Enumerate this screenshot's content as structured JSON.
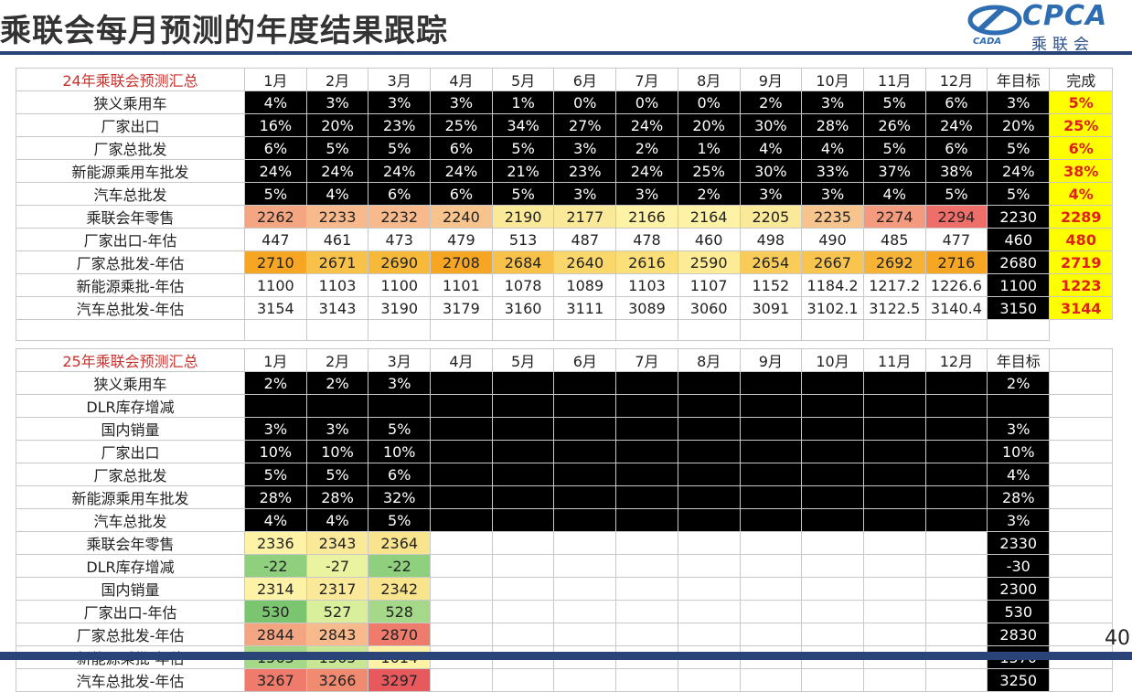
{
  "title": "乘联会每月预测的年度结果跟踪",
  "logo": {
    "en": "CPCA",
    "cn": "乘联会",
    "small": "CADA"
  },
  "page_number": "40",
  "months": [
    "1月",
    "2月",
    "3月",
    "4月",
    "5月",
    "6月",
    "7月",
    "8月",
    "9月",
    "10月",
    "11月",
    "12月"
  ],
  "year_target_label": "年目标",
  "done_label": "完成",
  "table2024": {
    "title": "24年乘联会预测汇总",
    "rows": [
      {
        "label": "狭义乘用车",
        "values": [
          "4%",
          "3%",
          "3%",
          "3%",
          "1%",
          "0%",
          "0%",
          "0%",
          "2%",
          "3%",
          "5%",
          "6%"
        ],
        "target": "3%",
        "done": "5%"
      },
      {
        "label": "厂家出口",
        "values": [
          "16%",
          "20%",
          "23%",
          "25%",
          "34%",
          "27%",
          "24%",
          "20%",
          "30%",
          "28%",
          "26%",
          "24%"
        ],
        "target": "20%",
        "done": "25%"
      },
      {
        "label": "厂家总批发",
        "values": [
          "6%",
          "5%",
          "5%",
          "6%",
          "5%",
          "3%",
          "2%",
          "1%",
          "4%",
          "4%",
          "5%",
          "6%"
        ],
        "target": "5%",
        "done": "6%"
      },
      {
        "label": "新能源乘用车批发",
        "values": [
          "24%",
          "24%",
          "24%",
          "24%",
          "21%",
          "23%",
          "24%",
          "25%",
          "30%",
          "33%",
          "37%",
          "38%"
        ],
        "target": "24%",
        "done": "38%"
      },
      {
        "label": "汽车总批发",
        "values": [
          "5%",
          "4%",
          "6%",
          "6%",
          "5%",
          "3%",
          "3%",
          "2%",
          "3%",
          "3%",
          "4%",
          "5%"
        ],
        "target": "5%",
        "done": "4%"
      },
      {
        "label": "乘联会年零售",
        "values": [
          "2262",
          "2233",
          "2232",
          "2240",
          "2190",
          "2177",
          "2166",
          "2164",
          "2205",
          "2235",
          "2274",
          "2294"
        ],
        "target": "2230",
        "done": "2289"
      },
      {
        "label": "厂家出口-年估",
        "values": [
          "447",
          "461",
          "473",
          "479",
          "513",
          "487",
          "478",
          "460",
          "498",
          "490",
          "485",
          "477"
        ],
        "target": "460",
        "done": "480"
      },
      {
        "label": "厂家总批发-年估",
        "values": [
          "2710",
          "2671",
          "2690",
          "2708",
          "2684",
          "2640",
          "2616",
          "2590",
          "2654",
          "2667",
          "2692",
          "2716"
        ],
        "target": "2680",
        "done": "2719"
      },
      {
        "label": "新能源乘批-年估",
        "values": [
          "1100",
          "1103",
          "1100",
          "1101",
          "1078",
          "1089",
          "1103",
          "1107",
          "1152",
          "1184.2",
          "1217.2",
          "1226.6"
        ],
        "target": "1100",
        "done": "1223"
      },
      {
        "label": "汽车总批发-年估",
        "values": [
          "3154",
          "3143",
          "3190",
          "3179",
          "3160",
          "3111",
          "3089",
          "3060",
          "3091",
          "3102.1",
          "3122.5",
          "3140.4"
        ],
        "target": "3150",
        "done": "3144"
      }
    ],
    "colors": {
      "retail": [
        "#f4a582",
        "#f8b98c",
        "#f8b98c",
        "#f8c48e",
        "#fbe99a",
        "#fbe99a",
        "#fdf2a6",
        "#fdf2a6",
        "#fbe99a",
        "#f8c48e",
        "#f49a7e",
        "#ee6f6a"
      ],
      "wholesale": [
        "#f6a623",
        "#f8c14a",
        "#f7b93a",
        "#f6a623",
        "#f8c14a",
        "#fad76a",
        "#fbe07a",
        "#fdeb95",
        "#f9cc5a",
        "#f9c54e",
        "#f7b335",
        "#f6a623"
      ]
    }
  },
  "table2025": {
    "title": "25年乘联会预测汇总",
    "rows": [
      {
        "label": "狭义乘用车",
        "values": [
          "2%",
          "2%",
          "3%"
        ],
        "target": "2%",
        "dark": true
      },
      {
        "label": "DLR库存增减",
        "values": [
          "",
          "",
          ""
        ],
        "target": "",
        "dark": true
      },
      {
        "label": "国内销量",
        "values": [
          "3%",
          "3%",
          "5%"
        ],
        "target": "3%",
        "dark": true
      },
      {
        "label": "厂家出口",
        "values": [
          "10%",
          "10%",
          "10%"
        ],
        "target": "10%",
        "dark": true
      },
      {
        "label": "厂家总批发",
        "values": [
          "5%",
          "5%",
          "6%"
        ],
        "target": "4%",
        "dark": true
      },
      {
        "label": "新能源乘用车批发",
        "values": [
          "28%",
          "28%",
          "32%"
        ],
        "target": "28%",
        "dark": true
      },
      {
        "label": "汽车总批发",
        "values": [
          "4%",
          "4%",
          "5%"
        ],
        "target": "3%",
        "dark": true
      },
      {
        "label": "乘联会年零售",
        "values": [
          "2336",
          "2343",
          "2364"
        ],
        "target": "2330",
        "colors": [
          "#fdf2a6",
          "#fbe99a",
          "#f8e48c"
        ]
      },
      {
        "label": "DLR库存增减",
        "values": [
          "-22",
          "-27",
          "-22"
        ],
        "target": "-30",
        "colors": [
          "#8fd07e",
          "#e9f3a0",
          "#8fd07e"
        ]
      },
      {
        "label": "国内销量",
        "values": [
          "2314",
          "2317",
          "2342"
        ],
        "target": "2300",
        "colors": [
          "#fdf2a6",
          "#fbe99a",
          "#f8e48c"
        ]
      },
      {
        "label": "厂家出口-年估",
        "values": [
          "530",
          "527",
          "528"
        ],
        "target": "530",
        "colors": [
          "#7cc570",
          "#d9ef9c",
          "#a6d88a"
        ]
      },
      {
        "label": "厂家总批发-年估",
        "values": [
          "2844",
          "2843",
          "2870"
        ],
        "target": "2830",
        "colors": [
          "#f4a582",
          "#f8b98c",
          "#ee7b6c"
        ]
      },
      {
        "label": "新能源乘批-年估",
        "values": [
          "1563",
          "1565",
          "1614"
        ],
        "target": "1570",
        "colors": [
          "#a6d88a",
          "#c8e694",
          "#fdf2a6"
        ]
      },
      {
        "label": "汽车总批发-年估",
        "values": [
          "3267",
          "3266",
          "3297"
        ],
        "target": "3250",
        "colors": [
          "#ee7b6c",
          "#f08a70",
          "#e8595e"
        ]
      }
    ]
  }
}
